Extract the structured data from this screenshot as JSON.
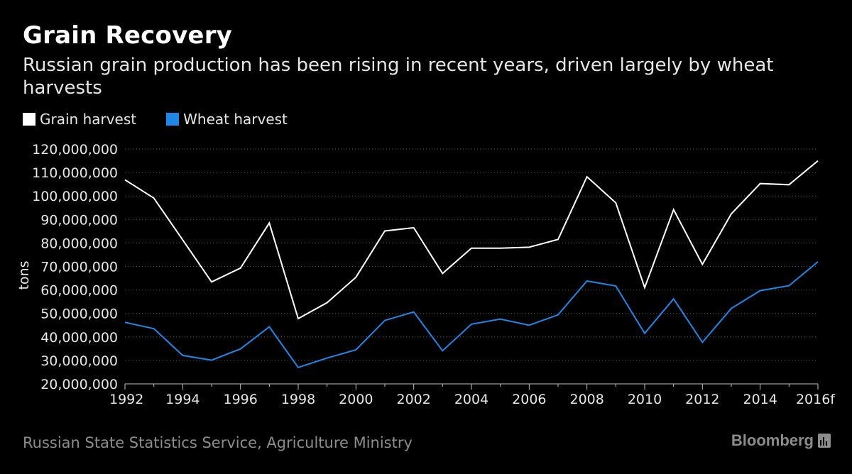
{
  "header": {
    "title": "Grain Recovery",
    "subtitle": "Russian grain production has been rising in recent years, driven largely by wheat harvests"
  },
  "footer": {
    "source": "Russian State Statistics Service, Agriculture Ministry",
    "brand": "Bloomberg"
  },
  "chart_data": {
    "type": "line",
    "title": "Grain Recovery",
    "subtitle": "Russian grain production has been rising in recent years, driven largely by wheat harvests",
    "ylabel": "tons",
    "xlabel": "",
    "ylim": [
      20000000,
      120000000
    ],
    "yticks": [
      "20,000,000",
      "30,000,000",
      "40,000,000",
      "50,000,000",
      "60,000,000",
      "70,000,000",
      "80,000,000",
      "90,000,000",
      "100,000,000",
      "110,000,000",
      "120,000,000"
    ],
    "x": [
      1992,
      1993,
      1994,
      1995,
      1996,
      1997,
      1998,
      1999,
      2000,
      2001,
      2002,
      2003,
      2004,
      2005,
      2006,
      2007,
      2008,
      2009,
      2010,
      2011,
      2012,
      2013,
      2014,
      2015,
      2016
    ],
    "xticks": [
      {
        "year": 1992,
        "label": "1992"
      },
      {
        "year": 1994,
        "label": "1994"
      },
      {
        "year": 1996,
        "label": "1996"
      },
      {
        "year": 1998,
        "label": "1998"
      },
      {
        "year": 2000,
        "label": "2000"
      },
      {
        "year": 2002,
        "label": "2002"
      },
      {
        "year": 2004,
        "label": "2004"
      },
      {
        "year": 2006,
        "label": "2006"
      },
      {
        "year": 2008,
        "label": "2008"
      },
      {
        "year": 2010,
        "label": "2010"
      },
      {
        "year": 2012,
        "label": "2012"
      },
      {
        "year": 2014,
        "label": "2014"
      },
      {
        "year": 2016,
        "label": "2016f"
      }
    ],
    "grid": true,
    "legend_position": "top-left",
    "series": [
      {
        "name": "Grain harvest",
        "color": "#ffffff",
        "values": [
          106900000,
          99100000,
          81300000,
          63400000,
          69300000,
          88500000,
          47800000,
          54600000,
          65400000,
          85100000,
          86500000,
          67000000,
          77800000,
          77800000,
          78200000,
          81500000,
          108200000,
          97100000,
          61000000,
          94200000,
          70900000,
          92400000,
          105300000,
          104800000,
          115000000
        ]
      },
      {
        "name": "Wheat harvest",
        "color": "#1f87e8",
        "values": [
          46200000,
          43500000,
          32100000,
          30100000,
          34900000,
          44300000,
          27000000,
          31000000,
          34500000,
          47000000,
          50600000,
          34100000,
          45400000,
          47600000,
          45000000,
          49400000,
          63800000,
          61700000,
          41500000,
          56200000,
          37700000,
          52100000,
          59700000,
          61800000,
          72000000
        ]
      }
    ]
  }
}
